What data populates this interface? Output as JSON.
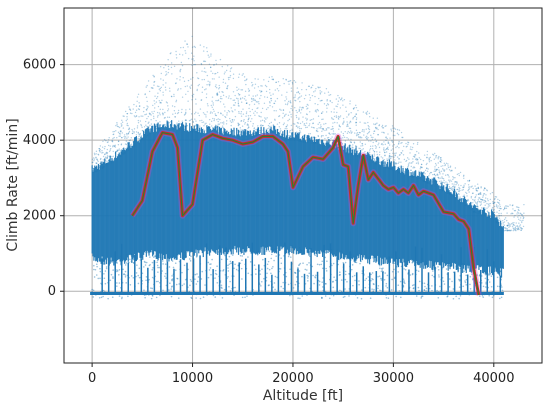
{
  "chart_data": {
    "type": "scatter",
    "title": "",
    "xlabel": "Altitude [ft]",
    "ylabel": "Climb Rate [ft/min]",
    "xlim": [
      -2800,
      44800
    ],
    "ylim": [
      -1900,
      7500
    ],
    "xticks": [
      0,
      10000,
      20000,
      30000,
      40000
    ],
    "yticks": [
      0,
      2000,
      4000,
      6000
    ],
    "xtick_labels": [
      "0",
      "10000",
      "20000",
      "30000",
      "40000"
    ],
    "ytick_labels": [
      "0",
      "2000",
      "4000",
      "6000"
    ],
    "grid": true,
    "legend": "none",
    "colors": {
      "scatter": "#1f77b4",
      "band": "#cc44cc",
      "mean_line_outer": "#d62728",
      "mean_line_inner": "#2e7d32",
      "grid": "#b0b0b0"
    },
    "scatter_envelope": {
      "x": [
        0,
        2000,
        4000,
        6000,
        8000,
        10000,
        12000,
        14000,
        16000,
        18000,
        20000,
        22000,
        24000,
        26000,
        28000,
        30000,
        32000,
        34000,
        36000,
        38000,
        40000,
        41000
      ],
      "upper_dense": [
        3100,
        3400,
        3800,
        4200,
        4300,
        4200,
        4150,
        4100,
        4100,
        4150,
        4000,
        3900,
        3800,
        3600,
        3400,
        3200,
        3000,
        2800,
        2500,
        2100,
        1900,
        1600
      ],
      "lower_dense": [
        1000,
        900,
        1000,
        1100,
        1000,
        1100,
        1200,
        1200,
        1200,
        1200,
        1200,
        1150,
        1100,
        1000,
        950,
        900,
        850,
        800,
        750,
        700,
        650,
        600
      ],
      "upper_sparse": [
        3600,
        4300,
        5000,
        5700,
        6400,
        6800,
        6300,
        5900,
        5700,
        5700,
        5600,
        5500,
        5300,
        5000,
        4700,
        4400,
        4000,
        3700,
        3300,
        2900,
        2600,
        2300
      ]
    },
    "series": [
      {
        "x": [
          4000,
          5000,
          6000,
          7000,
          8000,
          8500,
          9000,
          10000,
          11000,
          12000,
          13000,
          14000,
          15000,
          16000,
          17000,
          18000,
          19000,
          19500,
          20000,
          21000,
          22000,
          23000,
          24000,
          24500,
          25000,
          25500,
          26000,
          26500,
          27000,
          27500,
          28000,
          29000,
          29500,
          30000,
          30500,
          31000,
          31500,
          32000,
          32500,
          33000,
          34000,
          35000,
          36000,
          36500,
          37000,
          37500,
          38000,
          38500
        ],
        "values": [
          2000,
          2400,
          3700,
          4200,
          4150,
          3800,
          2000,
          2300,
          4000,
          4150,
          4050,
          4000,
          3900,
          3950,
          4100,
          4100,
          3900,
          3700,
          2750,
          3300,
          3550,
          3500,
          3800,
          4100,
          3350,
          3300,
          1800,
          2800,
          3600,
          2950,
          3150,
          2800,
          2700,
          2750,
          2600,
          2700,
          2600,
          2800,
          2550,
          2650,
          2550,
          2100,
          2050,
          1900,
          1850,
          1650,
          600,
          -100
        ]
      }
    ]
  }
}
